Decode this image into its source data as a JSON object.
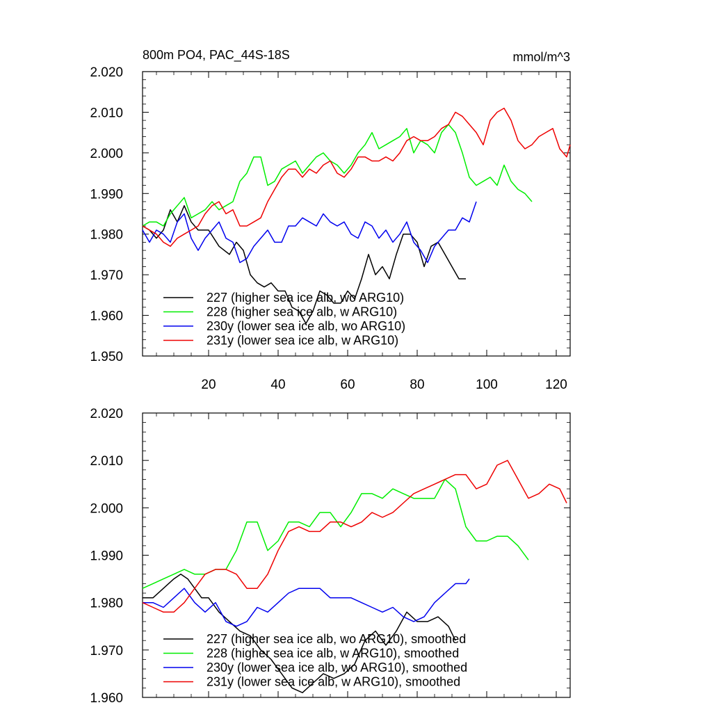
{
  "title_left": "800m PO4, PAC_44S-18S",
  "title_right": "mmol/m^3",
  "colors": {
    "s227": "#000000",
    "s228": "#00ee00",
    "s230y": "#0000ee",
    "s231y": "#ee0000"
  },
  "chart_data": [
    {
      "type": "line",
      "title": "800m PO4, PAC_44S-18S",
      "units": "mmol/m^3",
      "xlim": [
        1,
        124
      ],
      "ylim": [
        1.95,
        2.02
      ],
      "xticks": [
        20,
        40,
        60,
        80,
        100,
        120
      ],
      "xtick_labels": [
        "20",
        "40",
        "60",
        "80",
        "100",
        "120"
      ],
      "yticks": [
        1.95,
        1.96,
        1.97,
        1.98,
        1.99,
        2.0,
        2.01,
        2.02
      ],
      "ytick_labels": [
        "1.950",
        "1.960",
        "1.970",
        "1.980",
        "1.990",
        "2.000",
        "2.010",
        "2.020"
      ],
      "legend_position": "bottom-left",
      "series": [
        {
          "name": "227 (higher sea ice alb, wo ARG10)",
          "color_key": "s227",
          "x": [
            1,
            3,
            5,
            7,
            9,
            11,
            13,
            15,
            17,
            20,
            23,
            26,
            28,
            30,
            32,
            34,
            36,
            38,
            40,
            42,
            44,
            46,
            48,
            50,
            52,
            54,
            56,
            58,
            60,
            62,
            64,
            66,
            68,
            70,
            72,
            74,
            76,
            78,
            80,
            82,
            84,
            86,
            88,
            90,
            92,
            94
          ],
          "y": [
            1.982,
            1.981,
            1.979,
            1.981,
            1.986,
            1.983,
            1.987,
            1.983,
            1.981,
            1.981,
            1.977,
            1.975,
            1.978,
            1.976,
            1.97,
            1.968,
            1.967,
            1.968,
            1.966,
            1.966,
            1.962,
            1.961,
            1.958,
            1.961,
            1.966,
            1.965,
            1.963,
            1.963,
            1.966,
            1.964,
            1.969,
            1.975,
            1.97,
            1.972,
            1.969,
            1.975,
            1.98,
            1.98,
            1.978,
            1.972,
            1.977,
            1.978,
            1.975,
            1.972,
            1.969,
            1.969
          ]
        },
        {
          "name": "228 (higher sea ice alb, w ARG10)",
          "color_key": "s228",
          "x": [
            1,
            3,
            5,
            7,
            9,
            11,
            13,
            15,
            17,
            19,
            21,
            23,
            25,
            27,
            29,
            31,
            33,
            35,
            37,
            39,
            41,
            43,
            45,
            47,
            49,
            51,
            53,
            55,
            57,
            59,
            61,
            63,
            65,
            67,
            69,
            71,
            73,
            75,
            77,
            79,
            81,
            83,
            85,
            87,
            89,
            91,
            93,
            95,
            97,
            99,
            101,
            103,
            105,
            107,
            109,
            111,
            113
          ],
          "y": [
            1.982,
            1.983,
            1.983,
            1.982,
            1.985,
            1.987,
            1.989,
            1.984,
            1.985,
            1.986,
            1.988,
            1.986,
            1.987,
            1.988,
            1.993,
            1.995,
            1.999,
            1.999,
            1.992,
            1.993,
            1.996,
            1.997,
            1.998,
            1.995,
            1.997,
            1.999,
            2.0,
            1.998,
            1.997,
            1.995,
            1.997,
            2.0,
            2.002,
            2.005,
            2.001,
            2.002,
            2.003,
            2.004,
            2.006,
            2.0,
            2.003,
            2.002,
            2.0,
            2.005,
            2.007,
            2.005,
            2.0,
            1.994,
            1.992,
            1.993,
            1.994,
            1.992,
            1.997,
            1.993,
            1.991,
            1.99,
            1.988
          ]
        },
        {
          "name": "230y (lower sea ice alb, wo ARG10)",
          "color_key": "s230y",
          "x": [
            1,
            3,
            5,
            7,
            9,
            11,
            13,
            15,
            17,
            19,
            21,
            23,
            25,
            27,
            29,
            31,
            33,
            35,
            37,
            39,
            41,
            43,
            45,
            47,
            49,
            51,
            53,
            55,
            57,
            59,
            61,
            63,
            65,
            67,
            69,
            71,
            73,
            75,
            77,
            79,
            81,
            83,
            85,
            87,
            89,
            91,
            93,
            95,
            97
          ],
          "y": [
            1.981,
            1.978,
            1.981,
            1.98,
            1.978,
            1.983,
            1.985,
            1.979,
            1.976,
            1.979,
            1.981,
            1.983,
            1.979,
            1.978,
            1.973,
            1.974,
            1.977,
            1.979,
            1.981,
            1.978,
            1.978,
            1.982,
            1.982,
            1.984,
            1.983,
            1.982,
            1.985,
            1.983,
            1.982,
            1.983,
            1.98,
            1.979,
            1.983,
            1.982,
            1.979,
            1.981,
            1.978,
            1.98,
            1.983,
            1.978,
            1.976,
            1.973,
            1.977,
            1.979,
            1.981,
            1.981,
            1.984,
            1.983,
            1.988
          ]
        },
        {
          "name": "231y (lower sea ice alb, w ARG10)",
          "color_key": "s231y",
          "x": [
            1,
            3,
            5,
            7,
            9,
            11,
            13,
            15,
            17,
            19,
            21,
            23,
            25,
            27,
            29,
            31,
            33,
            35,
            37,
            39,
            41,
            43,
            45,
            47,
            49,
            51,
            53,
            55,
            57,
            59,
            61,
            63,
            65,
            67,
            69,
            71,
            73,
            75,
            77,
            79,
            81,
            83,
            85,
            87,
            89,
            91,
            93,
            95,
            97,
            99,
            101,
            103,
            105,
            107,
            109,
            111,
            113,
            115,
            117,
            119,
            121,
            123,
            124
          ],
          "y": [
            1.982,
            1.981,
            1.98,
            1.978,
            1.977,
            1.979,
            1.98,
            1.981,
            1.982,
            1.985,
            1.987,
            1.988,
            1.985,
            1.986,
            1.982,
            1.982,
            1.983,
            1.984,
            1.988,
            1.991,
            1.994,
            1.996,
            1.996,
            1.994,
            1.996,
            1.995,
            1.997,
            1.998,
            1.995,
            1.994,
            1.996,
            1.999,
            1.999,
            1.998,
            1.998,
            1.999,
            1.998,
            2.0,
            2.003,
            2.004,
            2.003,
            2.003,
            2.004,
            2.006,
            2.007,
            2.01,
            2.009,
            2.007,
            2.005,
            2.002,
            2.008,
            2.01,
            2.011,
            2.008,
            2.003,
            2.001,
            2.002,
            2.004,
            2.005,
            2.006,
            2.001,
            1.999,
            2.002
          ]
        }
      ]
    },
    {
      "type": "line",
      "xlim": [
        1,
        124
      ],
      "ylim": [
        1.96,
        2.02
      ],
      "yticks": [
        1.96,
        1.97,
        1.98,
        1.99,
        2.0,
        2.01,
        2.02
      ],
      "ytick_labels": [
        "1.960",
        "1.970",
        "1.980",
        "1.990",
        "2.000",
        "2.010",
        "2.020"
      ],
      "xticks": [
        20,
        40,
        60,
        80,
        100,
        120
      ],
      "legend_position": "bottom-left",
      "series": [
        {
          "name": "227 (higher sea ice alb, wo ARG10), smoothed",
          "color_key": "s227",
          "x": [
            1,
            4,
            7,
            10,
            12,
            14,
            16,
            18,
            20,
            23,
            26,
            29,
            32,
            35,
            38,
            41,
            44,
            47,
            50,
            53,
            56,
            59,
            62,
            65,
            68,
            71,
            74,
            77,
            80,
            83,
            86,
            89,
            91
          ],
          "y": [
            1.981,
            1.981,
            1.983,
            1.985,
            1.986,
            1.985,
            1.983,
            1.981,
            1.981,
            1.978,
            1.976,
            1.974,
            1.973,
            1.97,
            1.968,
            1.965,
            1.962,
            1.961,
            1.963,
            1.965,
            1.964,
            1.965,
            1.967,
            1.972,
            1.974,
            1.971,
            1.974,
            1.978,
            1.976,
            1.976,
            1.977,
            1.975,
            1.972
          ]
        },
        {
          "name": "228 (higher sea ice alb, w ARG10), smoothed",
          "color_key": "s228",
          "x": [
            1,
            4,
            7,
            10,
            13,
            16,
            19,
            22,
            25,
            28,
            31,
            34,
            37,
            40,
            43,
            46,
            49,
            52,
            55,
            58,
            61,
            64,
            67,
            70,
            73,
            76,
            79,
            82,
            85,
            88,
            91,
            94,
            97,
            100,
            103,
            106,
            109,
            112
          ],
          "y": [
            1.983,
            1.984,
            1.985,
            1.986,
            1.987,
            1.986,
            1.986,
            1.987,
            1.987,
            1.991,
            1.997,
            1.997,
            1.991,
            1.993,
            1.997,
            1.997,
            1.996,
            1.999,
            1.999,
            1.996,
            1.999,
            2.003,
            2.003,
            2.002,
            2.004,
            2.003,
            2.002,
            2.002,
            2.002,
            2.006,
            2.004,
            1.996,
            1.993,
            1.993,
            1.994,
            1.994,
            1.992,
            1.989
          ]
        },
        {
          "name": "230y (lower sea ice alb, wo ARG10), smoothed",
          "color_key": "s230y",
          "x": [
            1,
            4,
            7,
            10,
            13,
            16,
            19,
            22,
            25,
            28,
            31,
            34,
            37,
            40,
            43,
            46,
            49,
            52,
            55,
            58,
            61,
            64,
            67,
            70,
            73,
            76,
            79,
            82,
            85,
            88,
            91,
            94,
            95
          ],
          "y": [
            1.98,
            1.98,
            1.979,
            1.981,
            1.983,
            1.98,
            1.978,
            1.98,
            1.976,
            1.975,
            1.976,
            1.979,
            1.978,
            1.98,
            1.982,
            1.983,
            1.983,
            1.983,
            1.981,
            1.981,
            1.981,
            1.98,
            1.979,
            1.978,
            1.979,
            1.977,
            1.976,
            1.977,
            1.98,
            1.982,
            1.984,
            1.984,
            1.985
          ]
        },
        {
          "name": "231y (lower sea ice alb, w ARG10), smoothed",
          "color_key": "s231y",
          "x": [
            1,
            4,
            7,
            10,
            13,
            16,
            19,
            22,
            25,
            28,
            31,
            34,
            37,
            40,
            43,
            46,
            49,
            52,
            55,
            58,
            61,
            64,
            67,
            70,
            73,
            76,
            79,
            82,
            85,
            88,
            91,
            94,
            97,
            100,
            103,
            106,
            109,
            112,
            115,
            118,
            121,
            123
          ],
          "y": [
            1.98,
            1.979,
            1.978,
            1.978,
            1.98,
            1.983,
            1.986,
            1.987,
            1.987,
            1.986,
            1.983,
            1.983,
            1.986,
            1.991,
            1.995,
            1.996,
            1.995,
            1.995,
            1.997,
            1.997,
            1.996,
            1.997,
            1.999,
            1.998,
            1.999,
            2.001,
            2.003,
            2.004,
            2.005,
            2.006,
            2.007,
            2.007,
            2.004,
            2.005,
            2.009,
            2.01,
            2.006,
            2.002,
            2.003,
            2.005,
            2.004,
            2.001
          ]
        }
      ]
    }
  ]
}
